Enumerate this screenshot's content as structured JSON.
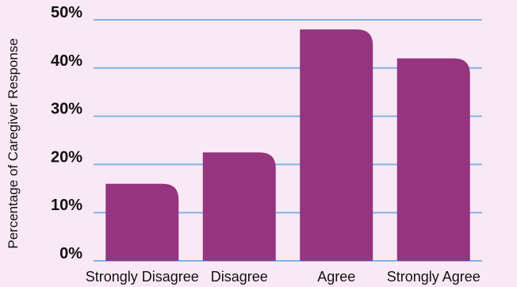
{
  "chart_data": {
    "type": "bar",
    "title": "",
    "xlabel": "",
    "ylabel": "Percentage of Caregiver Response",
    "categories": [
      "Strongly Disagree",
      "Disagree",
      "Agree",
      "Strongly Agree"
    ],
    "values": [
      16,
      22.5,
      48,
      42
    ],
    "ylim": [
      0,
      50
    ],
    "yticks": [
      0,
      10,
      20,
      30,
      40,
      50
    ],
    "ytick_labels": [
      "0%",
      "10%",
      "20%",
      "30%",
      "40%",
      "50%"
    ],
    "grid": true,
    "legend": "none"
  },
  "colors": {
    "background": "#f9e9f5",
    "bar": "#95347f",
    "grid": "#7eb4e6",
    "text": "#111111"
  }
}
